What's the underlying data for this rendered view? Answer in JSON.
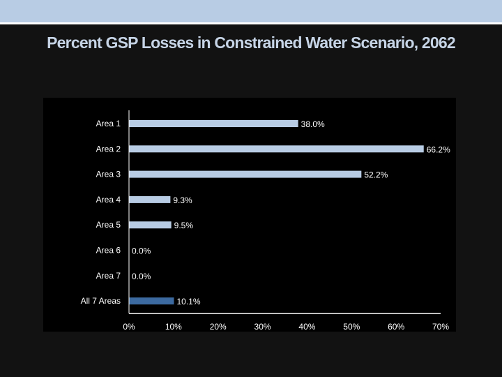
{
  "slide": {
    "title": "Percent GSP Losses in Constrained Water Scenario, 2062"
  },
  "colors": {
    "band": "#b8cce4",
    "bar": "#b8cce4",
    "total_bar": "#3c6aa0",
    "background": "#121212",
    "plot": "#000000"
  },
  "chart_data": {
    "type": "bar",
    "orientation": "horizontal",
    "title": "Percent GSP Losses in Constrained Water Scenario, 2062",
    "categories": [
      "Area 1",
      "Area 2",
      "Area 3",
      "Area 4",
      "Area 5",
      "Area 6",
      "Area 7",
      "All 7 Areas"
    ],
    "values": [
      38.0,
      66.2,
      52.2,
      9.3,
      9.5,
      0.0,
      0.0,
      10.1
    ],
    "data_labels": [
      "38.0%",
      "66.2%",
      "52.2%",
      "9.3%",
      "9.5%",
      "0.0%",
      "0.0%",
      "10.1%"
    ],
    "xlim": [
      0,
      70
    ],
    "xticks": [
      "0%",
      "10%",
      "20%",
      "30%",
      "40%",
      "50%",
      "60%",
      "70%"
    ],
    "grid": false,
    "legend": "none"
  }
}
